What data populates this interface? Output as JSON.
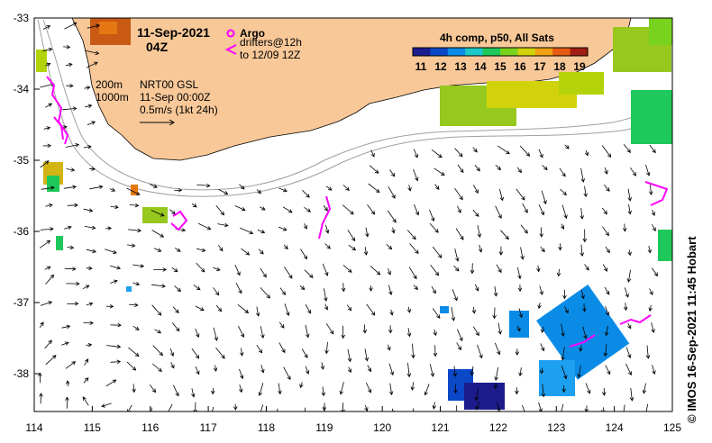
{
  "title": {
    "date": "11-Sep-2021",
    "time": "04Z"
  },
  "legend": {
    "argo_label": "Argo",
    "drifters_line1": "drifters@12h",
    "drifters_line2": "to 12/09 12Z",
    "contour_200": "200m",
    "contour_1000": "1000m",
    "product_line1": "NRT00 GSL",
    "product_line2": "11-Sep 00:00Z",
    "scale_label": "0.5m/s (1kt 24h)"
  },
  "colorbar": {
    "title": "4h comp, p50, All Sats",
    "ticks": [
      "11",
      "12",
      "13",
      "14",
      "15",
      "16",
      "17",
      "18",
      "19"
    ],
    "colors": [
      "#1c1c8c",
      "#0a48c8",
      "#0a8ce6",
      "#1ec8c8",
      "#1ec85a",
      "#78d21e",
      "#d2d20a",
      "#f0a014",
      "#e65a14",
      "#a01e14"
    ]
  },
  "credit": "© IMOS 16-Sep-2021 11:45 Hobart",
  "axes": {
    "x_ticks": [
      "114",
      "115",
      "116",
      "117",
      "118",
      "119",
      "120",
      "121",
      "122",
      "123",
      "124",
      "125"
    ],
    "y_ticks": [
      "-33",
      "-34",
      "-35",
      "-36",
      "-37",
      "-38"
    ]
  },
  "colors": {
    "land": "#f8c898",
    "argo": "#ff00ff",
    "contour": "#a0a0a0"
  }
}
